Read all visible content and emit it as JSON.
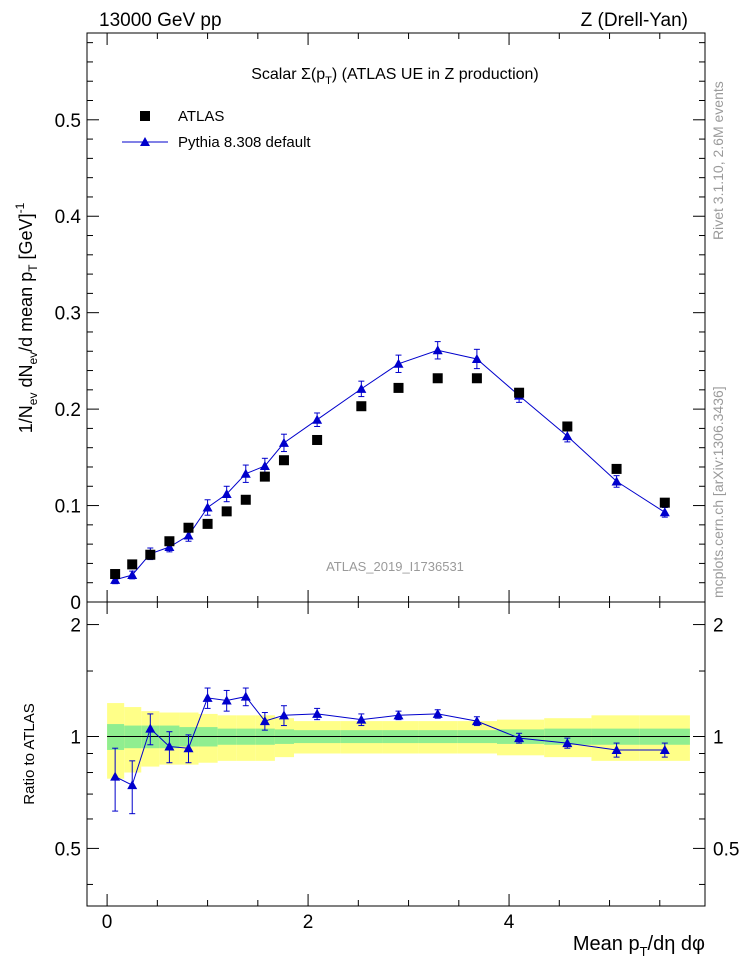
{
  "header": {
    "left": "13000 GeV pp",
    "right": "Z (Drell-Yan)"
  },
  "side_notes": {
    "rivet": "Rivet 3.1.10, 2.6M events",
    "mcplots": "mcplots.cern.ch [arXiv:1306.3436]"
  },
  "chart_data": [
    {
      "type": "scatter",
      "title": "Scalar Σ(pT) (ATLAS UE in Z production)",
      "title_parts": {
        "prefix": "Scalar ",
        "sigma": "Σ(p",
        "sub": "T",
        "suffix": ") (ATLAS UE in Z production)"
      },
      "watermark": "ATLAS_2019_I1736531",
      "ylabel": "1/Nev dNev/d mean pT [GeV]-1",
      "ylim": [
        0,
        0.59
      ],
      "xlim": [
        -0.2,
        5.95
      ],
      "yticks": [
        0.1,
        0.2,
        0.3,
        0.4,
        0.5
      ],
      "ytick_labels": [
        "0.1",
        "0.2",
        "0.3",
        "0.4",
        "0.5"
      ],
      "ytick_zero_label": "0",
      "legend_placement": "top-left",
      "series": [
        {
          "name": "ATLAS",
          "marker": "square",
          "color": "#000000",
          "x": [
            0.08,
            0.25,
            0.43,
            0.62,
            0.81,
            1.0,
            1.19,
            1.38,
            1.57,
            1.76,
            2.09,
            2.53,
            2.9,
            3.29,
            3.68,
            4.1,
            4.58,
            5.07,
            5.55
          ],
          "y": [
            0.029,
            0.039,
            0.049,
            0.063,
            0.077,
            0.081,
            0.094,
            0.106,
            0.13,
            0.147,
            0.168,
            0.203,
            0.222,
            0.232,
            0.232,
            0.217,
            0.182,
            0.138,
            0.103
          ]
        },
        {
          "name": "Pythia 8.308 default",
          "marker": "triangle",
          "color": "#0000cc",
          "x": [
            0.08,
            0.25,
            0.43,
            0.62,
            0.81,
            1.0,
            1.19,
            1.38,
            1.57,
            1.76,
            2.09,
            2.53,
            2.9,
            3.29,
            3.68,
            4.1,
            4.58,
            5.07,
            5.55
          ],
          "y": [
            0.023,
            0.028,
            0.05,
            0.057,
            0.069,
            0.098,
            0.112,
            0.133,
            0.141,
            0.165,
            0.189,
            0.221,
            0.247,
            0.261,
            0.252,
            0.214,
            0.172,
            0.125,
            0.093
          ],
          "yerr": [
            0.004,
            0.004,
            0.006,
            0.005,
            0.006,
            0.008,
            0.008,
            0.009,
            0.008,
            0.009,
            0.007,
            0.008,
            0.009,
            0.009,
            0.01,
            0.007,
            0.006,
            0.006,
            0.005
          ]
        }
      ]
    },
    {
      "type": "scatter",
      "ylabel": "Ratio to ATLAS",
      "xlabel": "Mean pT/dη dφ",
      "xlabel_parts": {
        "prefix": "Mean p",
        "sub": "T",
        "suffix": "/dη dφ"
      },
      "ylim": [
        0.35,
        2.3
      ],
      "xlim": [
        -0.2,
        5.95
      ],
      "yticks": [
        0.5,
        1,
        2
      ],
      "ytick_labels": [
        "0.5",
        "1",
        "2"
      ],
      "xticks": [
        0,
        2,
        4
      ],
      "xtick_labels": [
        "0",
        "2",
        "4"
      ],
      "bands": {
        "x_edges": [
          0.0,
          0.17,
          0.34,
          0.52,
          0.72,
          0.91,
          1.1,
          1.29,
          1.48,
          1.67,
          1.86,
          2.32,
          2.74,
          3.1,
          3.49,
          3.88,
          4.35,
          4.82,
          5.3,
          5.8
        ],
        "yellow_half": [
          0.23,
          0.2,
          0.17,
          0.16,
          0.16,
          0.15,
          0.14,
          0.14,
          0.14,
          0.12,
          0.1,
          0.1,
          0.1,
          0.1,
          0.1,
          0.11,
          0.12,
          0.14,
          0.14
        ],
        "green_half": [
          0.08,
          0.07,
          0.07,
          0.07,
          0.06,
          0.06,
          0.05,
          0.05,
          0.05,
          0.045,
          0.04,
          0.04,
          0.04,
          0.04,
          0.04,
          0.045,
          0.05,
          0.05,
          0.05
        ],
        "yellow_color": "#ffff88",
        "green_color": "#90ee90"
      },
      "series": [
        {
          "name": "Pythia 8.308 default",
          "marker": "triangle",
          "color": "#0000cc",
          "x": [
            0.08,
            0.25,
            0.43,
            0.62,
            0.81,
            1.0,
            1.19,
            1.38,
            1.57,
            1.76,
            2.09,
            2.53,
            2.9,
            3.29,
            3.68,
            4.1,
            4.58,
            5.07,
            5.55
          ],
          "y": [
            0.78,
            0.74,
            1.05,
            0.94,
            0.93,
            1.27,
            1.25,
            1.28,
            1.1,
            1.14,
            1.15,
            1.11,
            1.14,
            1.15,
            1.1,
            0.99,
            0.96,
            0.92,
            0.92
          ],
          "yerr": [
            0.15,
            0.12,
            0.1,
            0.09,
            0.08,
            0.08,
            0.08,
            0.07,
            0.06,
            0.07,
            0.04,
            0.04,
            0.03,
            0.03,
            0.03,
            0.03,
            0.03,
            0.04,
            0.04
          ]
        }
      ]
    }
  ]
}
